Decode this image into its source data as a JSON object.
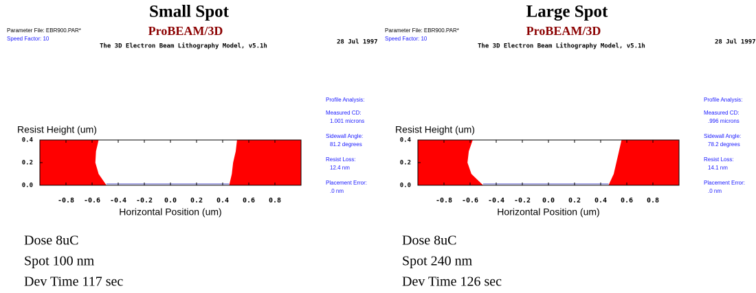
{
  "panels": [
    {
      "title": "Small Spot",
      "parameter_file": "Parameter File: EBR900.PAR*",
      "speed_factor": "Speed Factor:  10",
      "brand": "ProBEAM/3D",
      "model": "The 3D Electron Beam Lithography Model, v5.1h",
      "date": "28 Jul 1997",
      "analysis": [
        "Profile Analysis:",
        "Measured CD:",
        "1.001 microns",
        "Sidewall Angle:",
        "81.2 degrees",
        "Resist Loss:",
        "12.4 nm",
        "Placement Error:",
        ".0 nm"
      ],
      "notes": [
        "Dose 8uC",
        "Spot 100 nm",
        "Dev Time 117 sec"
      ]
    },
    {
      "title": "Large Spot",
      "parameter_file": "Parameter File: EBR900.PAR*",
      "speed_factor": "Speed Factor:  10",
      "brand": "ProBEAM/3D",
      "model": "The 3D Electron Beam Lithography Model, v5.1h",
      "date": "28 Jul 1997",
      "analysis": [
        "Profile Analysis:",
        "Measured CD:",
        ".996 microns",
        "Sidewall Angle:",
        "78.2 degrees",
        "Resist Loss:",
        "14.1 nm",
        "Placement Error:",
        ".0 nm"
      ],
      "notes": [
        "Dose 8uC",
        "Spot 240 nm",
        "Dev Time 126 sec"
      ]
    }
  ],
  "chart_data": [
    {
      "type": "area",
      "y_label": "Resist Height (um)",
      "x_label": "Horizontal Position (um)",
      "xlim": [
        -1,
        1
      ],
      "ylim": [
        0,
        0.4
      ],
      "xticks": [
        -0.8,
        -0.6,
        -0.4,
        -0.2,
        {
          "value": 0,
          "label": "0.0"
        },
        0.2,
        0.4,
        0.6,
        0.8
      ],
      "yticks": [
        {
          "value": 0,
          "label": "0.0"
        },
        0.2,
        0.4
      ],
      "series": [
        {
          "color": "#ff0000",
          "x": [
            -1,
            -1,
            -0.55,
            -0.57,
            -0.575,
            -0.55,
            -0.49
          ],
          "values": [
            0,
            0.4,
            0.4,
            0.3,
            0.2,
            0.1,
            0
          ]
        },
        {
          "color": "#ff0000",
          "x": [
            0.45,
            0.47,
            0.48,
            0.5,
            0.51,
            1,
            1
          ],
          "values": [
            0,
            0.1,
            0.2,
            0.3,
            0.4,
            0.4,
            0
          ]
        }
      ]
    },
    {
      "type": "area",
      "y_label": "Resist Height (um)",
      "x_label": "Horizontal Position (um)",
      "xlim": [
        -1,
        1
      ],
      "ylim": [
        0,
        0.4
      ],
      "xticks": [
        -0.8,
        -0.6,
        -0.4,
        -0.2,
        {
          "value": 0,
          "label": "0.0"
        },
        0.2,
        0.4,
        0.6,
        0.8
      ],
      "yticks": [
        {
          "value": 0,
          "label": "0.0"
        },
        0.2,
        0.4
      ],
      "series": [
        {
          "color": "#ff0000",
          "x": [
            -1,
            -1,
            -0.58,
            -0.61,
            -0.62,
            -0.59,
            -0.5
          ],
          "values": [
            0,
            0.4,
            0.4,
            0.3,
            0.2,
            0.1,
            0
          ]
        },
        {
          "color": "#ff0000",
          "x": [
            0.46,
            0.5,
            0.52,
            0.54,
            0.56,
            1,
            1
          ],
          "values": [
            0,
            0.1,
            0.2,
            0.3,
            0.4,
            0.4,
            0
          ]
        }
      ]
    }
  ]
}
